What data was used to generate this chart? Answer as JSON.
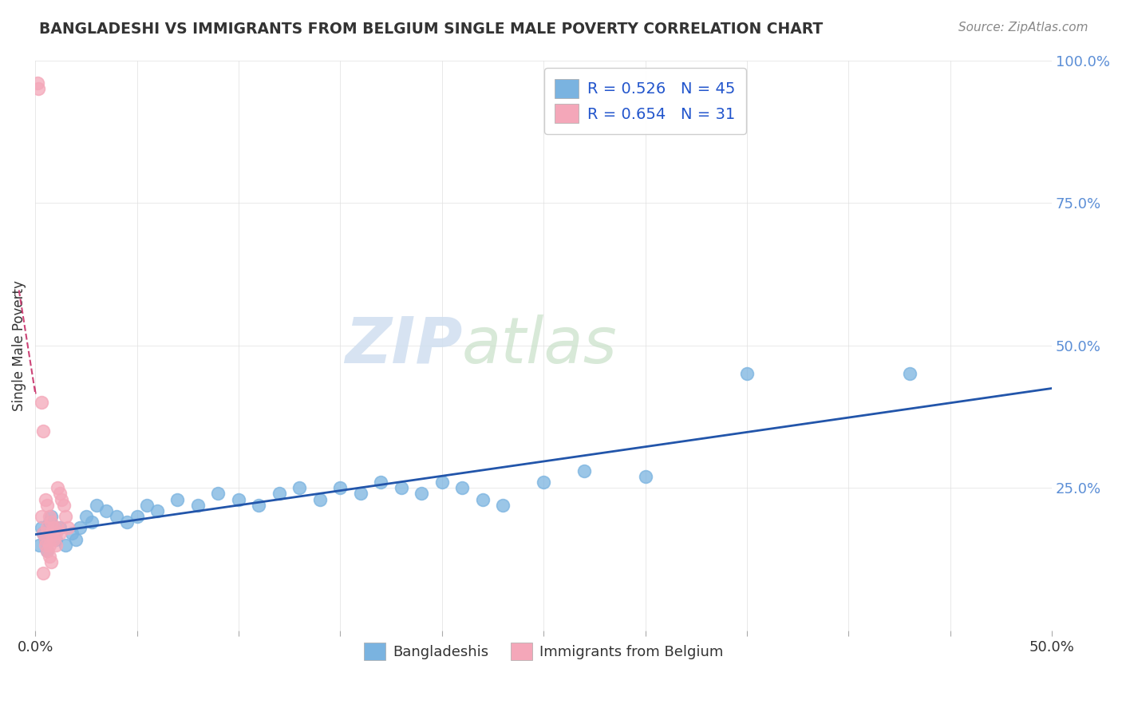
{
  "title": "BANGLADESHI VS IMMIGRANTS FROM BELGIUM SINGLE MALE POVERTY CORRELATION CHART",
  "source": "Source: ZipAtlas.com",
  "ylabel": "Single Male Poverty",
  "blue_R": 0.526,
  "blue_N": 45,
  "pink_R": 0.654,
  "pink_N": 31,
  "blue_color": "#7ab3e0",
  "pink_color": "#f4a7b9",
  "blue_line_color": "#2255aa",
  "pink_line_color": "#cc4477",
  "watermark_zip": "ZIP",
  "watermark_atlas": "atlas",
  "xlim": [
    0.0,
    0.5
  ],
  "ylim": [
    0.0,
    1.0
  ],
  "ytick_labels": [
    "",
    "25.0%",
    "50.0%",
    "75.0%",
    "100.0%"
  ],
  "xtick_labels": [
    "0.0%",
    "",
    "",
    "",
    "",
    "",
    "",
    "",
    "",
    "",
    "50.0%"
  ],
  "blue_x": [
    0.002,
    0.003,
    0.004,
    0.005,
    0.006,
    0.007,
    0.008,
    0.009,
    0.01,
    0.012,
    0.015,
    0.018,
    0.02,
    0.022,
    0.025,
    0.028,
    0.03,
    0.035,
    0.04,
    0.045,
    0.05,
    0.055,
    0.06,
    0.07,
    0.08,
    0.09,
    0.1,
    0.11,
    0.12,
    0.13,
    0.14,
    0.15,
    0.16,
    0.17,
    0.18,
    0.19,
    0.2,
    0.21,
    0.22,
    0.23,
    0.25,
    0.27,
    0.3,
    0.35,
    0.43
  ],
  "blue_y": [
    0.15,
    0.18,
    0.17,
    0.16,
    0.14,
    0.19,
    0.2,
    0.17,
    0.16,
    0.18,
    0.15,
    0.17,
    0.16,
    0.18,
    0.2,
    0.19,
    0.22,
    0.21,
    0.2,
    0.19,
    0.2,
    0.22,
    0.21,
    0.23,
    0.22,
    0.24,
    0.23,
    0.22,
    0.24,
    0.25,
    0.23,
    0.25,
    0.24,
    0.26,
    0.25,
    0.24,
    0.26,
    0.25,
    0.23,
    0.22,
    0.26,
    0.28,
    0.27,
    0.45,
    0.45
  ],
  "pink_x": [
    0.0012,
    0.0015,
    0.003,
    0.004,
    0.005,
    0.006,
    0.007,
    0.008,
    0.009,
    0.01,
    0.011,
    0.012,
    0.013,
    0.014,
    0.015,
    0.016,
    0.003,
    0.004,
    0.005,
    0.006,
    0.007,
    0.008,
    0.009,
    0.01,
    0.011,
    0.012,
    0.005,
    0.006,
    0.007,
    0.008,
    0.004
  ],
  "pink_y": [
    0.96,
    0.95,
    0.4,
    0.35,
    0.23,
    0.22,
    0.2,
    0.19,
    0.18,
    0.17,
    0.25,
    0.24,
    0.23,
    0.22,
    0.2,
    0.18,
    0.2,
    0.17,
    0.16,
    0.18,
    0.15,
    0.17,
    0.16,
    0.15,
    0.18,
    0.17,
    0.15,
    0.14,
    0.13,
    0.12,
    0.1
  ]
}
